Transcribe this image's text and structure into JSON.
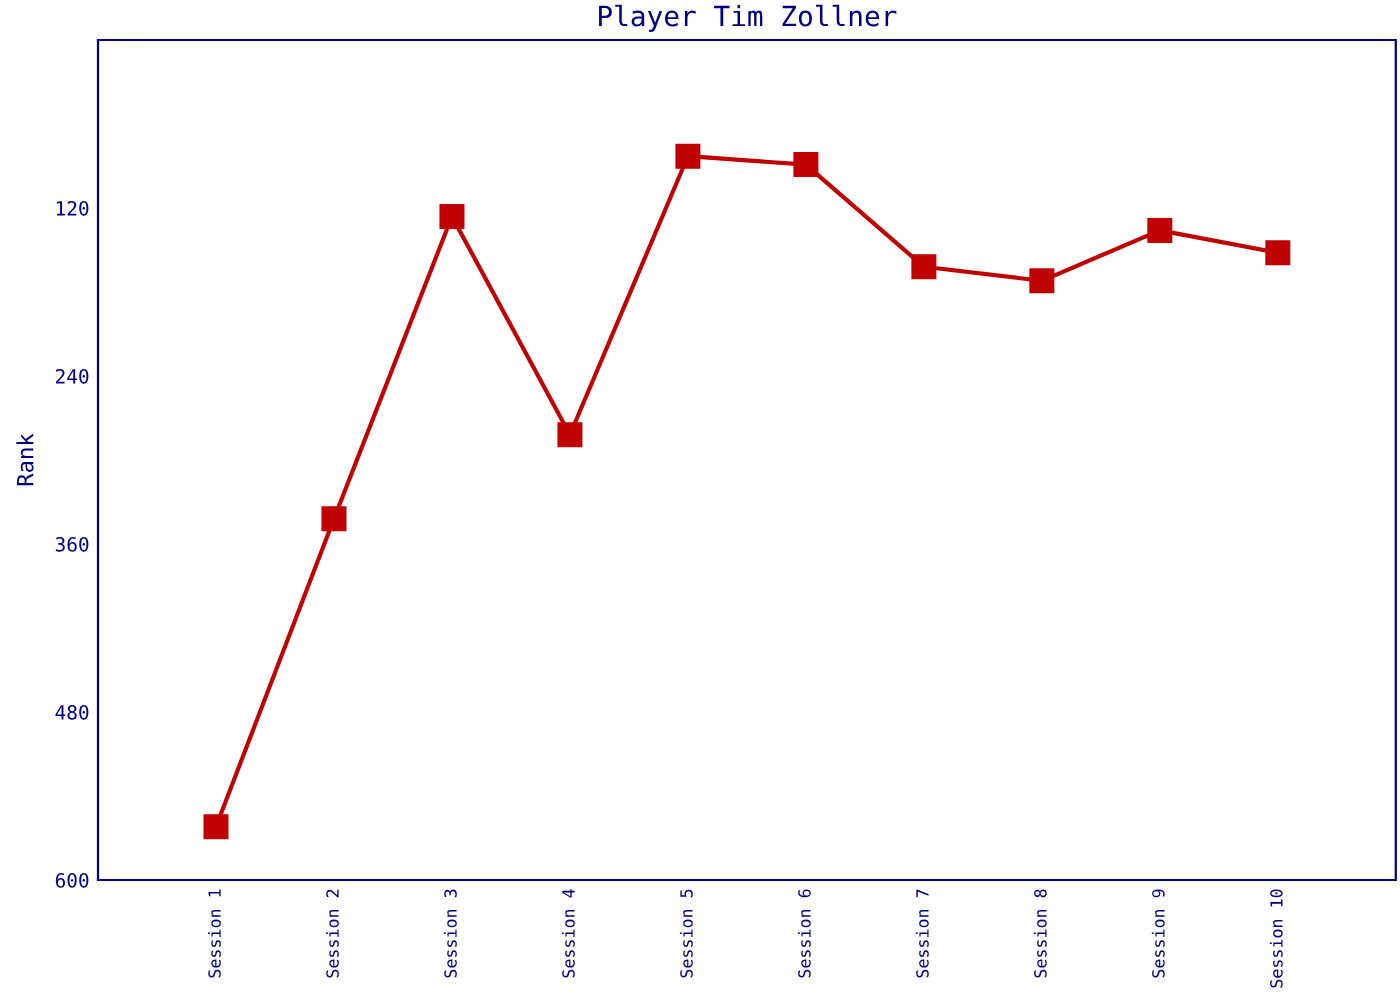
{
  "chart_data": {
    "type": "line",
    "title": "Player Tim Zollner",
    "ylabel": "Rank",
    "categories": [
      "Session 1",
      "Session 2",
      "Session 3",
      "Session 4",
      "Session 5",
      "Session 6",
      "Session 7",
      "Session 8",
      "Session 9",
      "Session 10"
    ],
    "series": [
      {
        "color": "#c00000",
        "values": [
          562,
          342,
          126,
          282,
          83,
          89,
          162,
          172,
          136,
          152
        ]
      }
    ],
    "ylim": [
      600,
      0
    ],
    "yticks": [
      120,
      240,
      360,
      480,
      600
    ],
    "marker": "square",
    "line_style": "solid",
    "grid": false
  }
}
